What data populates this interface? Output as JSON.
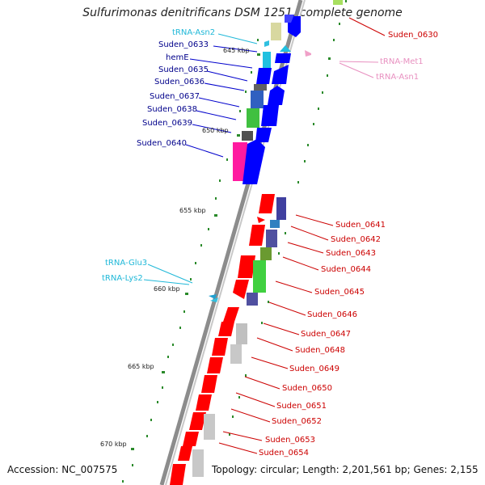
{
  "title": "Sulfurimonas denitrificans DSM 1251, complete genome",
  "accession": "Accession: NC_007575",
  "topology": "Topology: circular; Length: 2,201,561 bp; Genes: 2,155",
  "kbp_ticks": [
    "645 kbp",
    "650 kbp",
    "655 kbp",
    "660 kbp",
    "665 kbp",
    "670 kbp"
  ],
  "left_genes": [
    "Suden_0633",
    "hemE",
    "Suden_0635",
    "Suden_0636",
    "Suden_0637",
    "Suden_0638",
    "Suden_0639",
    "Suden_0640"
  ],
  "left_trnas": [
    "tRNA-Asn2",
    "tRNA-Glu3",
    "tRNA-Lys2"
  ],
  "right_genes": [
    "Suden_0630",
    "Suden_0641",
    "Suden_0642",
    "Suden_0643",
    "Suden_0644",
    "Suden_0645",
    "Suden_0646",
    "Suden_0647",
    "Suden_0648",
    "Suden_0649",
    "Suden_0650",
    "Suden_0651",
    "Suden_0652",
    "Suden_0653",
    "Suden_0654"
  ],
  "right_trnas": [
    "tRNA-Met1",
    "tRNA-Asn1"
  ],
  "colors": {
    "left_label": "#00008b",
    "right_label": "#cc0000",
    "trna_cyan": "#1fb8d8",
    "trna_pink": "#e890c0",
    "plus_strand": "#ff0000",
    "minus_strand": "#0000ff",
    "tick": "#2a8a2a",
    "backbone": "#8c8c8c"
  }
}
